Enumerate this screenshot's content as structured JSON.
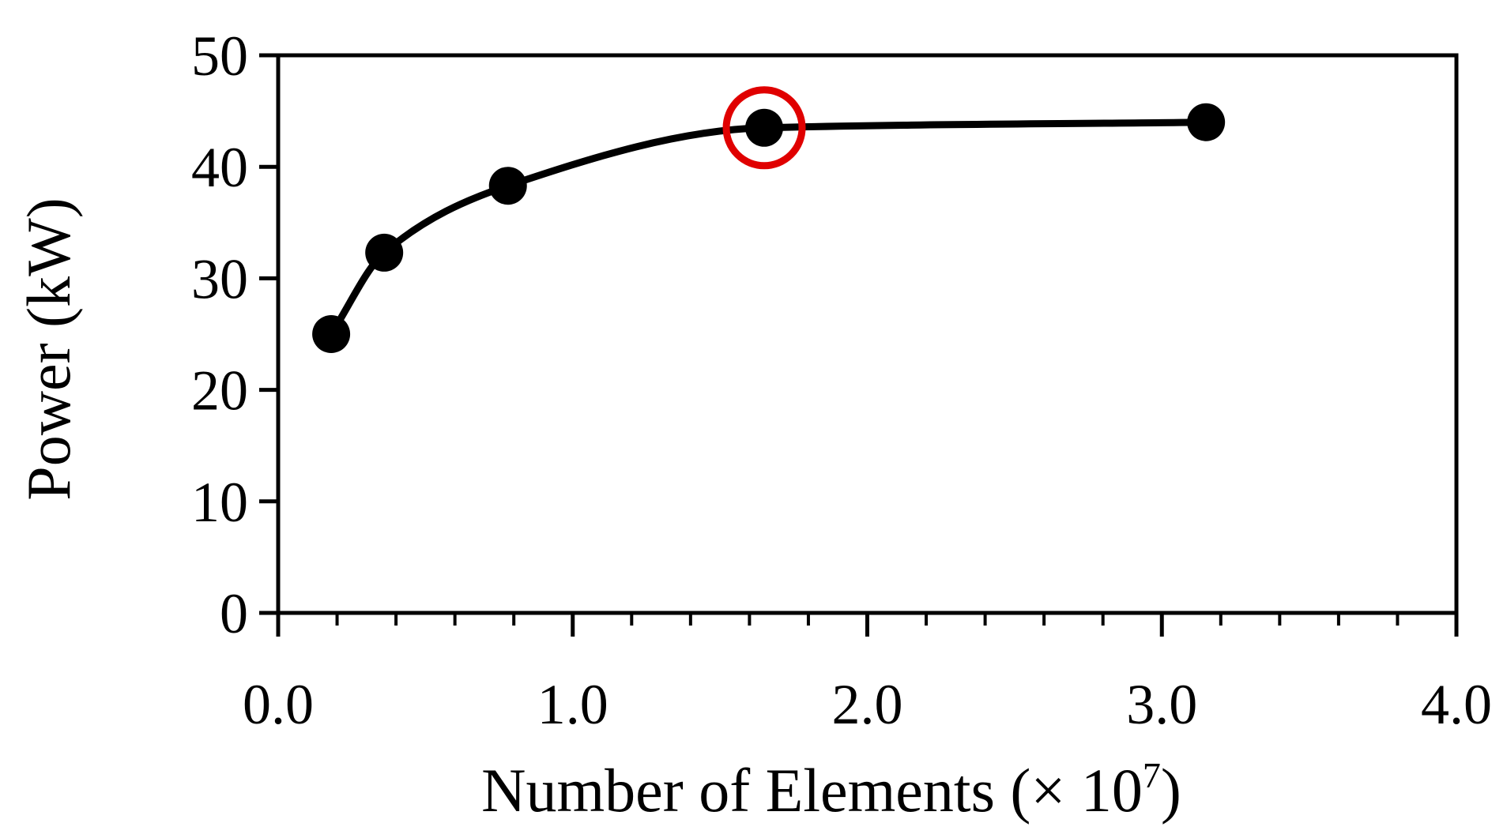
{
  "chart_data": {
    "type": "line",
    "xlabel_main": "Number of Elements (× 10",
    "xlabel_exponent": "7",
    "xlabel_close": ")",
    "ylabel": "Power (kW)",
    "xlim": [
      0.0,
      4.0
    ],
    "ylim": [
      0,
      50
    ],
    "xticks": [
      {
        "value": 0.0,
        "label": "0.0"
      },
      {
        "value": 1.0,
        "label": "1.0"
      },
      {
        "value": 2.0,
        "label": "2.0"
      },
      {
        "value": 3.0,
        "label": "3.0"
      },
      {
        "value": 4.0,
        "label": "4.0"
      }
    ],
    "x_minor_step": 0.2,
    "yticks": [
      {
        "value": 0,
        "label": "0"
      },
      {
        "value": 10,
        "label": "10"
      },
      {
        "value": 20,
        "label": "20"
      },
      {
        "value": 30,
        "label": "30"
      },
      {
        "value": 40,
        "label": "40"
      },
      {
        "value": 50,
        "label": "50"
      }
    ],
    "grid": false,
    "legend": "none",
    "series": [
      {
        "x": [
          0.18,
          0.36,
          0.78,
          1.65,
          3.15
        ],
        "y": [
          25.0,
          32.3,
          38.3,
          43.5,
          44.0
        ],
        "color": "#000000",
        "smooth": true
      }
    ],
    "highlight": {
      "x": 1.65,
      "y": 43.5,
      "color": "#e00000"
    }
  }
}
